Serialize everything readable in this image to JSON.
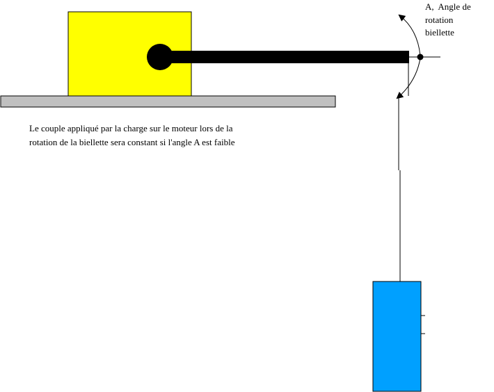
{
  "angle_label": {
    "line1": "A,  Angle de",
    "line2": "rotation",
    "line3": "biellette"
  },
  "caption": {
    "line1": "Le couple appliqué par la charge sur le moteur lors de la",
    "line2": "rotation de la biellette sera constant si l'angle A est faible"
  },
  "colors": {
    "load_block": "#ffff00",
    "base_plate": "#c0c0c0",
    "rod": "#000000",
    "weight": "#00a0ff",
    "outline": "#000000"
  }
}
